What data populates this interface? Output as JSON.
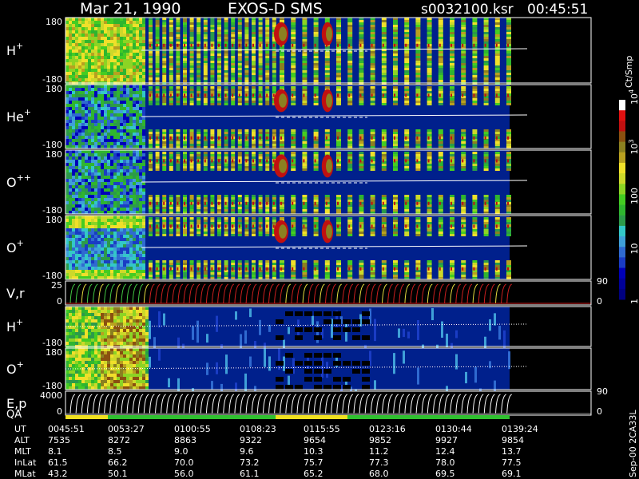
{
  "header": {
    "date": "Mar 21, 1990",
    "instrument": "EXOS-D SMS",
    "file": "s0032100.ksr",
    "time": "00:45:51"
  },
  "colorbar": {
    "label": "Ct/Smp",
    "ticks": [
      {
        "value": 1,
        "label": "1"
      },
      {
        "value": 10,
        "label": "10"
      },
      {
        "value": 100,
        "label": "100"
      },
      {
        "value": 1000,
        "label": "10",
        "sup": "3"
      },
      {
        "value": 10000,
        "label": "10",
        "sup": "4"
      }
    ],
    "colors": [
      "#000080",
      "#000099",
      "#0000b8",
      "#1a3cc4",
      "#2f6ad0",
      "#3fa0d8",
      "#33c8c8",
      "#2c9a4a",
      "#2fb52f",
      "#44cc22",
      "#8cd424",
      "#cdd82a",
      "#f0e02a",
      "#b8a020",
      "#8b8020",
      "#8a5010",
      "#c01010",
      "#e01010",
      "#ffffff"
    ]
  },
  "chart_data": {
    "type": "heatmap",
    "panels": [
      {
        "id": "h-plus",
        "label": "H",
        "sup": "+",
        "ymin": -180,
        "ymax": 180,
        "tick_top": "180",
        "tick_bottom": "-180"
      },
      {
        "id": "he-plus",
        "label": "He",
        "sup": "+",
        "ymin": -180,
        "ymax": 180,
        "tick_top": "180",
        "tick_bottom": "-180"
      },
      {
        "id": "o-plus-plus",
        "label": "O",
        "sup": "++",
        "ymin": -180,
        "ymax": 180,
        "tick_top": "180",
        "tick_bottom": "-180"
      },
      {
        "id": "o-plus",
        "label": "O",
        "sup": "+",
        "ymin": -180,
        "ymax": 180,
        "tick_top": "180",
        "tick_bottom": "-180"
      },
      {
        "id": "v-r",
        "label": "V,r",
        "sup": "",
        "ymin": 0,
        "ymax": 25,
        "tick_top": "25",
        "tick_bottom": "0",
        "right_top": "90",
        "right_bottom": "0"
      },
      {
        "id": "h-plus-2",
        "label": "H",
        "sup": "+",
        "ymin": -180,
        "ymax": 180,
        "tick_top": "",
        "tick_bottom": "-180"
      },
      {
        "id": "o-plus-2",
        "label": "O",
        "sup": "+",
        "ymin": -180,
        "ymax": 180,
        "tick_top": "180",
        "tick_bottom": "-180"
      },
      {
        "id": "e-p",
        "label": "E,p",
        "sup": "",
        "ymin": 0,
        "ymax": 4000,
        "tick_top": "4000",
        "tick_bottom": "0",
        "right_top": "90",
        "right_bottom": "0"
      }
    ],
    "qa_label": "QA",
    "ephemeris": {
      "rows": [
        "UT",
        "ALT",
        "MLT",
        "InLat",
        "MLat"
      ],
      "columns": [
        {
          "UT": "0045:51",
          "ALT": "7535",
          "MLT": "8.1",
          "InLat": "61.5",
          "MLat": "43.2"
        },
        {
          "UT": "0053:27",
          "ALT": "8272",
          "MLT": "8.5",
          "InLat": "66.2",
          "MLat": "50.1"
        },
        {
          "UT": "0100:55",
          "ALT": "8863",
          "MLT": "9.0",
          "InLat": "70.0",
          "MLat": "56.0"
        },
        {
          "UT": "0108:23",
          "ALT": "9322",
          "MLT": "9.6",
          "InLat": "73.2",
          "MLat": "61.1"
        },
        {
          "UT": "0115:55",
          "ALT": "9654",
          "MLT": "10.3",
          "InLat": "75.7",
          "MLat": "65.2"
        },
        {
          "UT": "0123:16",
          "ALT": "9852",
          "MLT": "11.2",
          "InLat": "77.3",
          "MLat": "68.0"
        },
        {
          "UT": "0130:44",
          "ALT": "9927",
          "MLT": "12.4",
          "InLat": "78.0",
          "MLat": "69.5"
        },
        {
          "UT": "0139:24",
          "ALT": "9854",
          "MLT": "13.7",
          "InLat": "77.5",
          "MLat": "69.1"
        }
      ]
    },
    "footer_note": "Sep-00 2CA33L"
  }
}
